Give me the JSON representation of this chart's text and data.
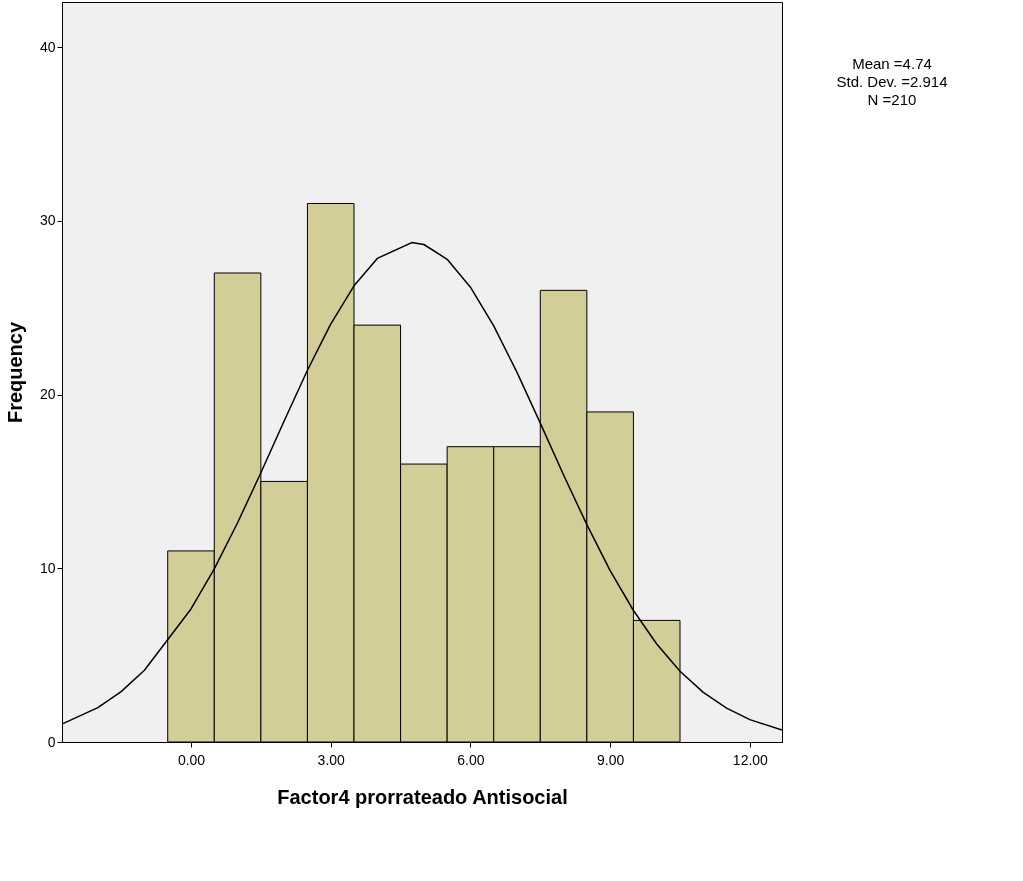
{
  "chart_data": {
    "type": "histogram",
    "xlabel": "Factor4 prorrateado Antisocial",
    "ylabel": "Frequency",
    "bins": [
      -0.5,
      0.5,
      1.5,
      2.5,
      3.5,
      4.5,
      5.5,
      6.5,
      7.5,
      8.5,
      9.5,
      10.5
    ],
    "values": [
      11,
      27,
      15,
      31,
      24,
      16,
      17,
      17,
      26,
      19,
      7
    ],
    "color": "#d3ce97",
    "series": [
      {
        "type": "line",
        "color": "#000000",
        "x": [
          -2.75,
          -2,
          -1.5,
          -1,
          0,
          0.5,
          1,
          1.5,
          2,
          2.5,
          3,
          3.5,
          4,
          4.74,
          5,
          5.5,
          6,
          6.5,
          7,
          7.5,
          8,
          8.5,
          9,
          9.5,
          10,
          10.5,
          11,
          11.5,
          12,
          12.69
        ],
        "values": [
          1.06,
          1.98,
          2.9,
          4.13,
          7.66,
          9.97,
          12.62,
          15.5,
          18.48,
          21.4,
          24.06,
          26.26,
          27.84,
          28.75,
          28.64,
          27.79,
          26.18,
          23.96,
          21.28,
          18.36,
          15.37,
          12.51,
          9.87,
          7.57,
          5.64,
          4.07,
          2.86,
          1.95,
          1.29,
          0.69
        ]
      }
    ],
    "xlim": [
      -2.77,
      12.69
    ],
    "ylim": [
      0,
      42.6
    ],
    "xticks": [
      {
        "value": 0,
        "label": "0.00"
      },
      {
        "value": 3,
        "label": "3.00"
      },
      {
        "value": 6,
        "label": "6.00"
      },
      {
        "value": 9,
        "label": "9.00"
      },
      {
        "value": 12,
        "label": "12.00"
      }
    ],
    "yticks": [
      0,
      10,
      20,
      30,
      40
    ],
    "grid": false,
    "annotations": [
      "Mean =4.74",
      "Std. Dev. =2.914",
      "N =210"
    ]
  }
}
